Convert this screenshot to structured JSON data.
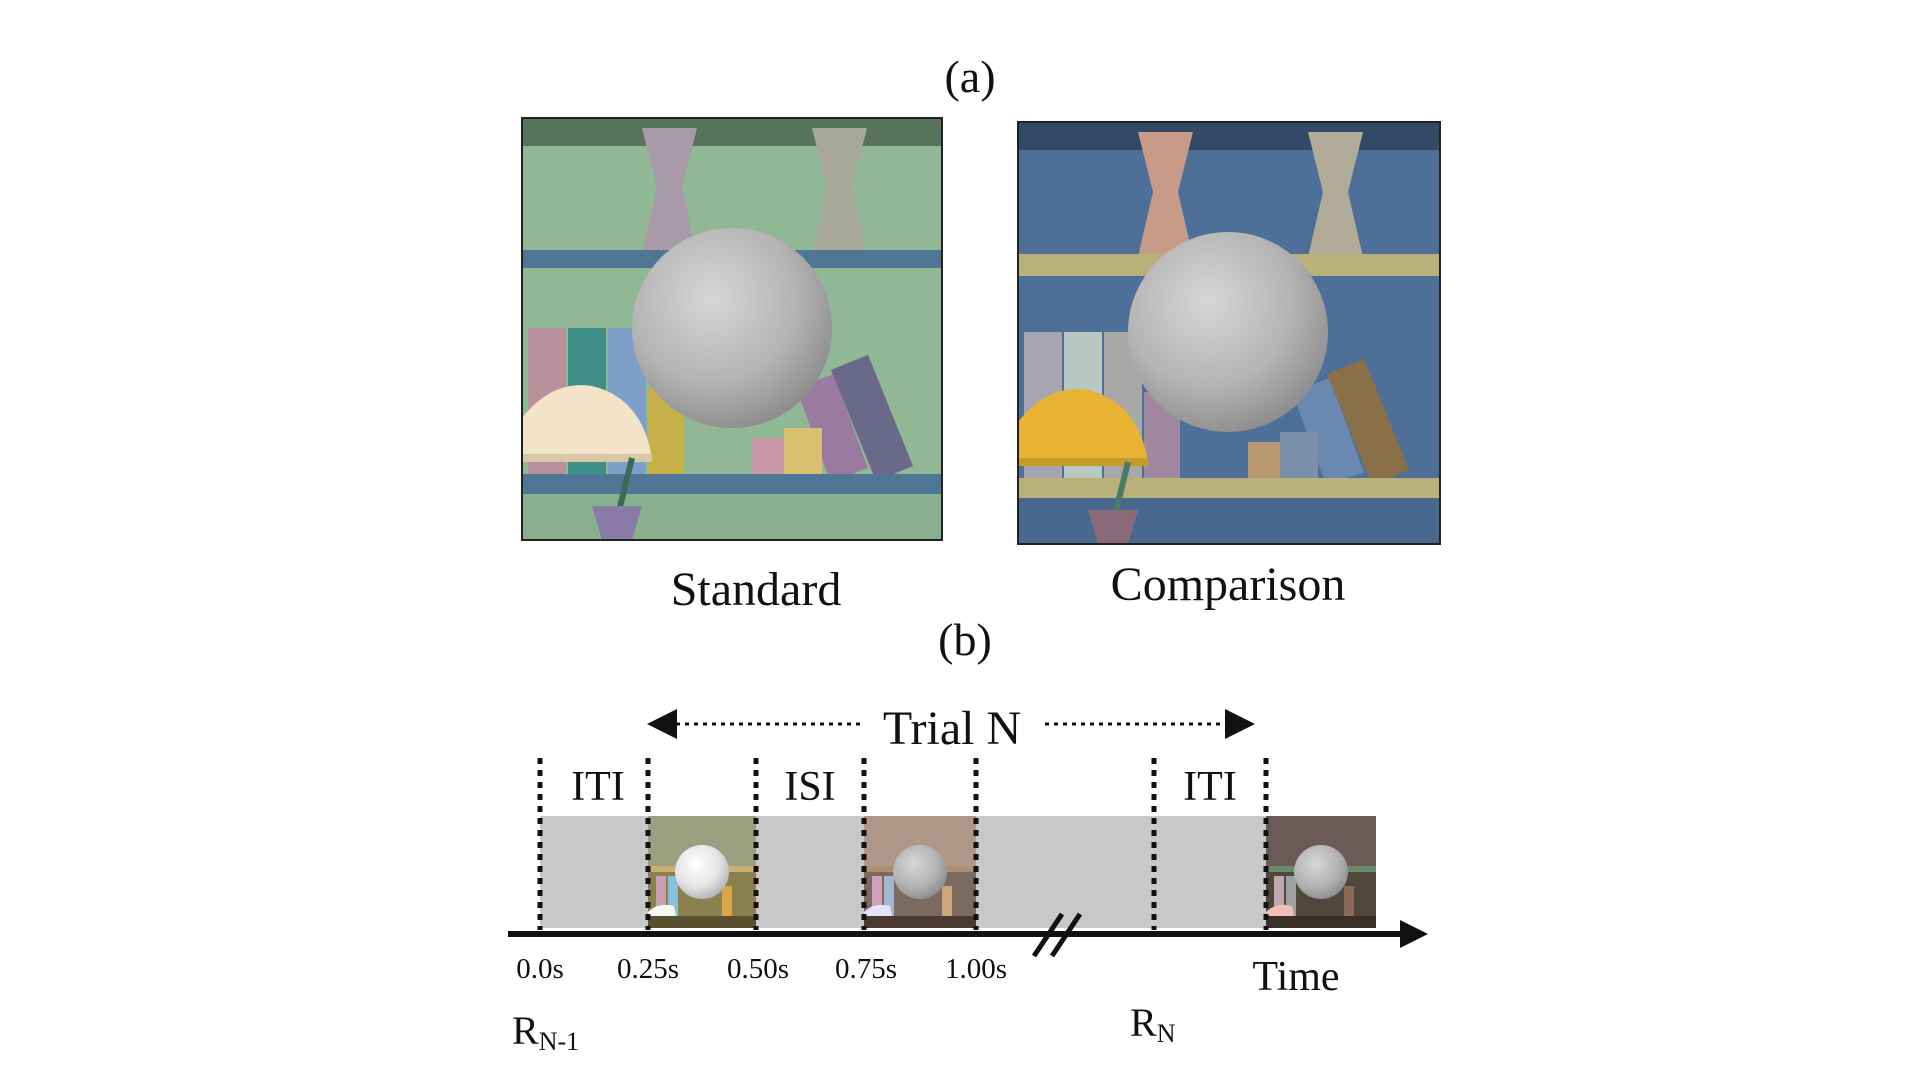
{
  "panel_a": {
    "label": "(a)",
    "standard_label": "Standard",
    "comparison_label": "Comparison",
    "standard_colors": {
      "wall": "#90b894",
      "shelf": "#4f7694",
      "sphere": "#b8b8b8",
      "lamp": "#f3e3c8"
    },
    "comparison_colors": {
      "wall": "#4e6f98",
      "shelf": "#b8b27a",
      "sphere": "#b8b8b8",
      "lamp": "#e6b432"
    }
  },
  "panel_b": {
    "label": "(b)",
    "trial_label": "Trial N",
    "interval_labels": [
      "ITI",
      "ISI",
      "ITI"
    ],
    "tick_labels": [
      "0.0s",
      "0.25s",
      "0.50s",
      "0.75s",
      "1.00s"
    ],
    "axis_label": "Time",
    "response_prev": {
      "base": "R",
      "sub": "N-1"
    },
    "response_curr": {
      "base": "R",
      "sub": "N"
    },
    "blank_color": "#c8c8c8"
  }
}
